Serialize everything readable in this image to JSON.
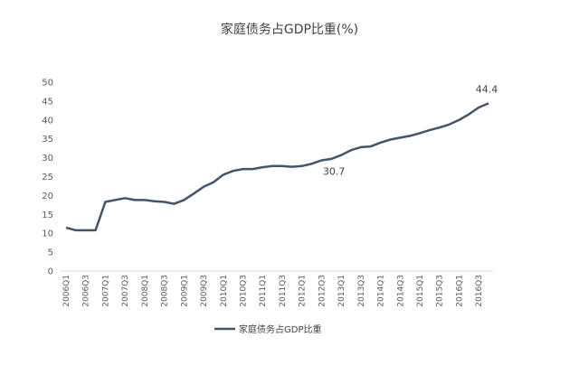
{
  "chart_data": {
    "type": "line",
    "title": "家庭债务占GDP比重(%)",
    "xlabel": "",
    "ylabel": "",
    "ylim": [
      0,
      50
    ],
    "yticks": [
      0,
      5,
      10,
      15,
      20,
      25,
      30,
      35,
      40,
      45,
      50
    ],
    "grid": false,
    "legend_position": "bottom",
    "color": "#44546a",
    "x": [
      "2006Q1",
      "2006Q2",
      "2006Q3",
      "2006Q4",
      "2007Q1",
      "2007Q2",
      "2007Q3",
      "2007Q4",
      "2008Q1",
      "2008Q2",
      "2008Q3",
      "2008Q4",
      "2009Q1",
      "2009Q2",
      "2009Q3",
      "2009Q4",
      "2010Q1",
      "2010Q2",
      "2010Q3",
      "2010Q4",
      "2011Q1",
      "2011Q2",
      "2011Q3",
      "2011Q4",
      "2012Q1",
      "2012Q2",
      "2012Q3",
      "2012Q4",
      "2013Q1",
      "2013Q2",
      "2013Q3",
      "2013Q4",
      "2014Q1",
      "2014Q2",
      "2014Q3",
      "2014Q4",
      "2015Q1",
      "2015Q2",
      "2015Q3",
      "2015Q4",
      "2016Q1",
      "2016Q2",
      "2016Q3",
      "2016Q4"
    ],
    "x_tick_labels": [
      "2006Q1",
      "2006Q3",
      "2007Q1",
      "2007Q3",
      "2008Q1",
      "2008Q3",
      "2009Q1",
      "2009Q3",
      "2010Q1",
      "2010Q3",
      "2011Q1",
      "2011Q3",
      "2012Q1",
      "2012Q3",
      "2013Q1",
      "2013Q3",
      "2014Q1",
      "2014Q3",
      "2015Q1",
      "2015Q3",
      "2016Q1",
      "2016Q3"
    ],
    "series": [
      {
        "name": "家庭债务占GDP比重",
        "values": [
          11.5,
          10.8,
          10.8,
          10.8,
          18.3,
          18.8,
          19.3,
          18.8,
          18.8,
          18.5,
          18.3,
          17.8,
          18.8,
          20.5,
          22.3,
          23.5,
          25.5,
          26.5,
          27.0,
          27.0,
          27.5,
          27.8,
          27.8,
          27.6,
          27.8,
          28.4,
          29.3,
          29.7,
          30.7,
          32.0,
          32.8,
          33.0,
          34.0,
          34.8,
          35.3,
          35.8,
          36.5,
          37.3,
          38.0,
          38.8,
          40.0,
          41.5,
          43.3,
          44.4
        ]
      }
    ],
    "annotations": [
      {
        "text": "30.7",
        "x": "2013Q1",
        "value": 30.7
      },
      {
        "text": "44.4",
        "x": "2016Q4",
        "value": 44.4
      }
    ]
  }
}
